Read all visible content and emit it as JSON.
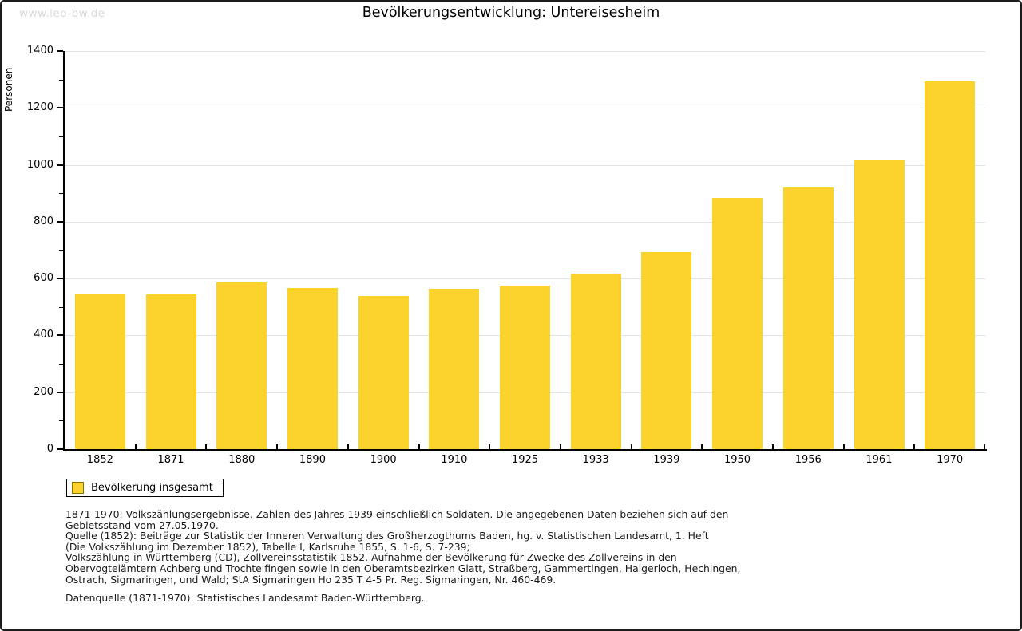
{
  "page": {
    "watermark": "www.leo-bw.de"
  },
  "chart_data": {
    "type": "bar",
    "title": "Bevölkerungsentwicklung: Untereisesheim",
    "ylabel": "Personen",
    "xlabel": "",
    "categories": [
      "1852",
      "1871",
      "1880",
      "1890",
      "1900",
      "1910",
      "1925",
      "1933",
      "1939",
      "1950",
      "1956",
      "1961",
      "1970"
    ],
    "values": [
      548,
      545,
      587,
      566,
      539,
      564,
      576,
      618,
      692,
      885,
      921,
      1019,
      1293
    ],
    "series_name": "Bevölkerung insgesamt",
    "ylim": [
      0,
      1400
    ],
    "y_major_step": 200,
    "y_minor_step": 100,
    "grid": true,
    "legend_position": "bottom-left"
  },
  "legend": {
    "label": "Bevölkerung insgesamt"
  },
  "footnotes": {
    "lines": [
      "1871-1970: Volkszählungsergebnisse. Zahlen des Jahres 1939 einschließlich Soldaten. Die angegebenen Daten beziehen sich auf den",
      "Gebietsstand vom 27.05.1970.",
      "Quelle (1852): Beiträge zur Statistik der Inneren Verwaltung des Großherzogthums Baden, hg. v. Statistischen Landesamt, 1. Heft",
      "(Die Volkszählung im Dezember 1852), Tabelle I, Karlsruhe 1855, S. 1-6, S. 7-239;",
      "Volkszählung in Württemberg (CD), Zollvereinsstatistik 1852. Aufnahme der Bevölkerung für Zwecke des Zollvereins in den",
      "Obervogteiämtern Achberg und Trochtelfingen sowie in den Oberamtsbezirken Glatt, Straßberg, Gammertingen, Haigerloch, Hechingen,",
      "Ostrach, Sigmaringen, und Wald; StA Sigmaringen Ho 235 T 4-5 Pr. Reg. Sigmaringen, Nr. 460-469."
    ],
    "datasource": "Datenquelle (1871-1970): Statistisches Landesamt Baden-Württemberg."
  },
  "colors": {
    "bar": "#FCD32D",
    "bar_border": "#8B7500",
    "grid": "#E3E3E3",
    "axis": "#000000",
    "watermark": "#D9D9D9"
  }
}
